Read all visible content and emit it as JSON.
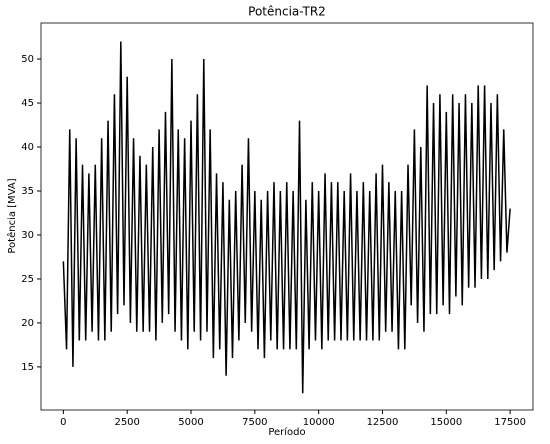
{
  "chart_data": {
    "type": "line",
    "title": "Potência-TR2",
    "x_label": "Período",
    "y_label": "Potência [MVA]",
    "x": [
      0,
      125,
      250,
      375,
      500,
      625,
      750,
      875,
      1000,
      1125,
      1250,
      1375,
      1500,
      1625,
      1750,
      1875,
      2000,
      2125,
      2250,
      2375,
      2500,
      2625,
      2750,
      2875,
      3000,
      3125,
      3250,
      3375,
      3500,
      3625,
      3750,
      3875,
      4000,
      4125,
      4250,
      4375,
      4500,
      4625,
      4750,
      4875,
      5000,
      5125,
      5250,
      5375,
      5500,
      5625,
      5750,
      5875,
      6000,
      6125,
      6250,
      6375,
      6500,
      6625,
      6750,
      6875,
      7000,
      7125,
      7250,
      7375,
      7500,
      7625,
      7750,
      7875,
      8000,
      8125,
      8250,
      8375,
      8500,
      8625,
      8750,
      8875,
      9000,
      9125,
      9250,
      9375,
      9500,
      9625,
      9750,
      9875,
      10000,
      10125,
      10250,
      10375,
      10500,
      10625,
      10750,
      10875,
      11000,
      11125,
      11250,
      11375,
      11500,
      11625,
      11750,
      11875,
      12000,
      12125,
      12250,
      12375,
      12500,
      12625,
      12750,
      12875,
      13000,
      13125,
      13250,
      13375,
      13500,
      13625,
      13750,
      13875,
      14000,
      14125,
      14250,
      14375,
      14500,
      14625,
      14750,
      14875,
      15000,
      15125,
      15250,
      15375,
      15500,
      15625,
      15750,
      15875,
      16000,
      16125,
      16250,
      16375,
      16500,
      16625,
      16750,
      16875,
      17000,
      17125,
      17250,
      17375,
      17500
    ],
    "series": [
      {
        "name": "Potência-TR2",
        "color": "#000000",
        "values": [
          27,
          17,
          42,
          15,
          41,
          18,
          38,
          18,
          37,
          19,
          38,
          18,
          41,
          18,
          43,
          19,
          46,
          21,
          52,
          22,
          48,
          20,
          41,
          19,
          39,
          19,
          38,
          19,
          40,
          18,
          42,
          20,
          44,
          21,
          50,
          19,
          42,
          18,
          41,
          17,
          43,
          19,
          46,
          18,
          50,
          19,
          42,
          16,
          37,
          17,
          36,
          14,
          34,
          16,
          35,
          18,
          38,
          20,
          41,
          19,
          35,
          17,
          34,
          16,
          35,
          18,
          36,
          17,
          35,
          17,
          36,
          17,
          35,
          17,
          43,
          12,
          34,
          17,
          36,
          18,
          35,
          17,
          37,
          18,
          36,
          18,
          36,
          18,
          35,
          18,
          37,
          18,
          35,
          18,
          36,
          18,
          35,
          18,
          37,
          18,
          38,
          19,
          36,
          19,
          35,
          17,
          35,
          17,
          38,
          22,
          42,
          20,
          40,
          19,
          47,
          21,
          45,
          21,
          46,
          22,
          44,
          21,
          46,
          23,
          45,
          22,
          46,
          24,
          45,
          24,
          47,
          25,
          47,
          25,
          45,
          26,
          46,
          27,
          42,
          28,
          33
        ]
      }
    ],
    "xlim": [
      -876,
      18396
    ],
    "ylim": [
      10.1,
      54.1
    ],
    "xticks": [
      0,
      2500,
      5000,
      7500,
      10000,
      12500,
      15000,
      17500
    ],
    "yticks": [
      15,
      20,
      25,
      30,
      35,
      40,
      45,
      50
    ]
  }
}
